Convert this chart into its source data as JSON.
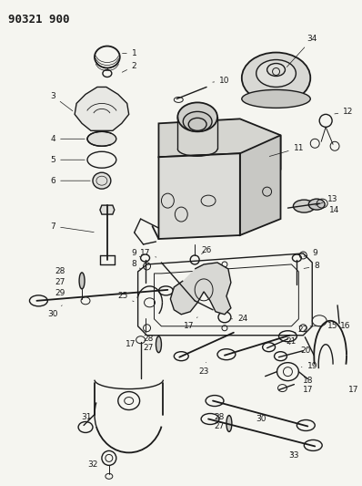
{
  "title": "90321 900",
  "bg_color": "#f5f5f0",
  "figsize": [
    3.98,
    5.33
  ],
  "dpi": 100,
  "line_color": "#1a1a1a",
  "label_fontsize": 6.5
}
